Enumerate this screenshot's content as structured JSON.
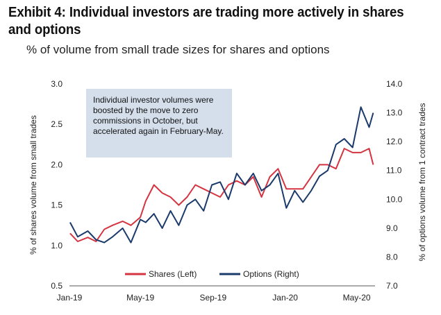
{
  "page": {
    "title": "Exhibit 4: Individual investors are trading more actively in shares and options",
    "subtitle": "% of volume from small trade sizes for shares and options"
  },
  "annotation": {
    "text": "Individual investor volumes were boosted by the move to zero commissions in October, but accelerated again in February-May."
  },
  "colors": {
    "shares": "#d4333f",
    "options": "#1a3a6b",
    "annotation_bg": "#d5dfec"
  },
  "chart_data": {
    "type": "line",
    "title": "",
    "ylabel": "% of shares volume from small trades",
    "y2label": "% of options volume from 1 contract trades",
    "x_tick_labels": [
      "Jan-19",
      "May-19",
      "Sep-19",
      "Jan-20",
      "May-20"
    ],
    "x_tick_dates": [
      "2019-01-01",
      "2019-05-01",
      "2019-09-01",
      "2020-01-01",
      "2020-05-01"
    ],
    "xlim": [
      "2019-01-01",
      "2020-06-01"
    ],
    "ylim": [
      0.5,
      3.0
    ],
    "y2lim": [
      7.0,
      14.0
    ],
    "y_ticks": [
      "0.5",
      "1.0",
      "1.5",
      "2.0",
      "2.5",
      "3.0"
    ],
    "y2_ticks": [
      "7.0",
      "8.0",
      "9.0",
      "10.0",
      "11.0",
      "12.0",
      "13.0",
      "14.0"
    ],
    "legend_position": "bottom-center",
    "grid": false,
    "series": [
      {
        "name": "Shares (Left)",
        "axis": "left",
        "x": [
          "2019-01-02",
          "2019-01-15",
          "2019-02-01",
          "2019-02-15",
          "2019-03-01",
          "2019-03-15",
          "2019-04-01",
          "2019-04-15",
          "2019-05-01",
          "2019-05-10",
          "2019-05-24",
          "2019-06-07",
          "2019-06-21",
          "2019-07-05",
          "2019-07-19",
          "2019-08-02",
          "2019-08-16",
          "2019-08-30",
          "2019-09-13",
          "2019-09-27",
          "2019-10-11",
          "2019-10-25",
          "2019-11-08",
          "2019-11-22",
          "2019-12-06",
          "2019-12-20",
          "2020-01-03",
          "2020-01-17",
          "2020-01-31",
          "2020-02-14",
          "2020-02-28",
          "2020-03-13",
          "2020-03-27",
          "2020-04-10",
          "2020-04-24",
          "2020-05-08",
          "2020-05-22",
          "2020-05-29"
        ],
        "values": [
          1.15,
          1.05,
          1.1,
          1.05,
          1.2,
          1.25,
          1.3,
          1.25,
          1.35,
          1.55,
          1.75,
          1.65,
          1.6,
          1.5,
          1.6,
          1.75,
          1.7,
          1.65,
          1.6,
          1.75,
          1.8,
          1.75,
          1.85,
          1.6,
          1.85,
          1.95,
          1.7,
          1.7,
          1.7,
          1.85,
          2.0,
          2.0,
          1.95,
          2.2,
          2.15,
          2.15,
          2.2,
          2.0
        ]
      },
      {
        "name": "Options (Right)",
        "axis": "right",
        "x": [
          "2019-01-02",
          "2019-01-15",
          "2019-02-01",
          "2019-02-15",
          "2019-03-01",
          "2019-03-15",
          "2019-04-01",
          "2019-04-15",
          "2019-05-01",
          "2019-05-10",
          "2019-05-24",
          "2019-06-07",
          "2019-06-21",
          "2019-07-05",
          "2019-07-19",
          "2019-08-02",
          "2019-08-16",
          "2019-08-30",
          "2019-09-13",
          "2019-09-27",
          "2019-10-11",
          "2019-10-25",
          "2019-11-08",
          "2019-11-22",
          "2019-12-06",
          "2019-12-20",
          "2020-01-03",
          "2020-01-17",
          "2020-01-31",
          "2020-02-14",
          "2020-02-28",
          "2020-03-13",
          "2020-03-27",
          "2020-04-10",
          "2020-04-24",
          "2020-05-08",
          "2020-05-22",
          "2020-05-29"
        ],
        "values": [
          9.2,
          8.7,
          8.9,
          8.6,
          8.5,
          8.7,
          9.0,
          8.5,
          9.3,
          9.2,
          9.5,
          9.0,
          9.6,
          9.1,
          9.8,
          10.0,
          9.6,
          10.5,
          10.6,
          10.0,
          10.9,
          10.5,
          10.9,
          10.3,
          10.5,
          10.9,
          9.7,
          10.3,
          9.9,
          10.3,
          10.8,
          11.0,
          11.9,
          12.1,
          11.8,
          13.2,
          12.5,
          13.0
        ]
      }
    ]
  }
}
